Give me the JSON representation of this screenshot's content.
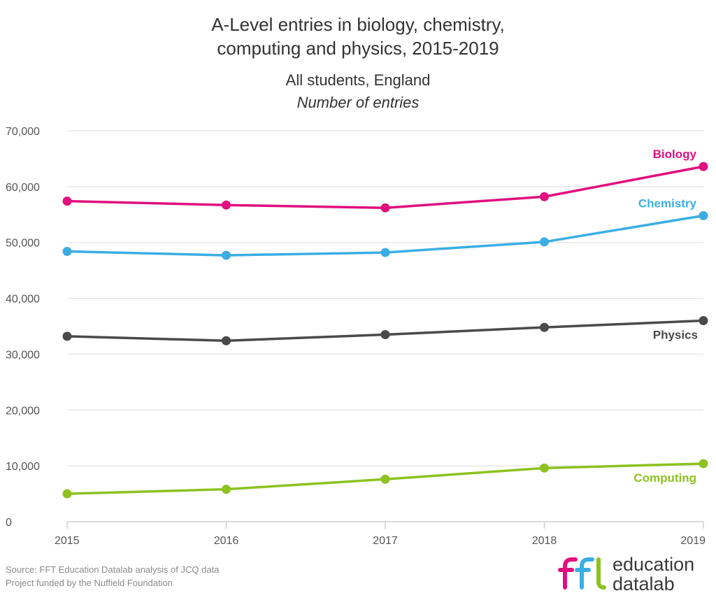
{
  "chart_data": {
    "type": "line",
    "title": "A-Level entries in biology, chemistry, computing and physics, 2015-2019",
    "title_lines": [
      "A-Level entries in biology, chemistry,",
      "computing and physics, 2015-2019"
    ],
    "subtitle": "All students, England",
    "ylabel": "Number of entries",
    "x": [
      "2015",
      "2016",
      "2017",
      "2018",
      "2019"
    ],
    "ylim": [
      0,
      70000
    ],
    "yticks": [
      0,
      10000,
      20000,
      30000,
      40000,
      50000,
      60000,
      70000
    ],
    "ytick_labels": [
      "0",
      "10,000",
      "20,000",
      "30,000",
      "40,000",
      "50,000",
      "60,000",
      "70,000"
    ],
    "grid": "horizontal",
    "legend": "direct labels at line ends",
    "series": [
      {
        "name": "Biology",
        "color": "#e0107e",
        "values": [
          57400,
          56700,
          56200,
          58200,
          63600
        ]
      },
      {
        "name": "Chemistry",
        "color": "#3aaee3",
        "values": [
          48400,
          47700,
          48200,
          50100,
          54800
        ]
      },
      {
        "name": "Physics",
        "color": "#4a4a4a",
        "values": [
          33200,
          32400,
          33500,
          34800,
          36000
        ]
      },
      {
        "name": "Computing",
        "color": "#8dc21f",
        "values": [
          5000,
          5800,
          7600,
          9600,
          10400
        ]
      }
    ]
  },
  "footer": {
    "source": "Source: FFT Education Datalab analysis of JCQ data",
    "funding": "Project funded by the Nuffield Foundation"
  },
  "logo": {
    "mark": "ffl",
    "line1": "education",
    "line2": "datalab",
    "colors": {
      "pink": "#e0107e",
      "blue": "#3aaee3",
      "green": "#8dc21f",
      "text": "#3a3a3a"
    }
  }
}
